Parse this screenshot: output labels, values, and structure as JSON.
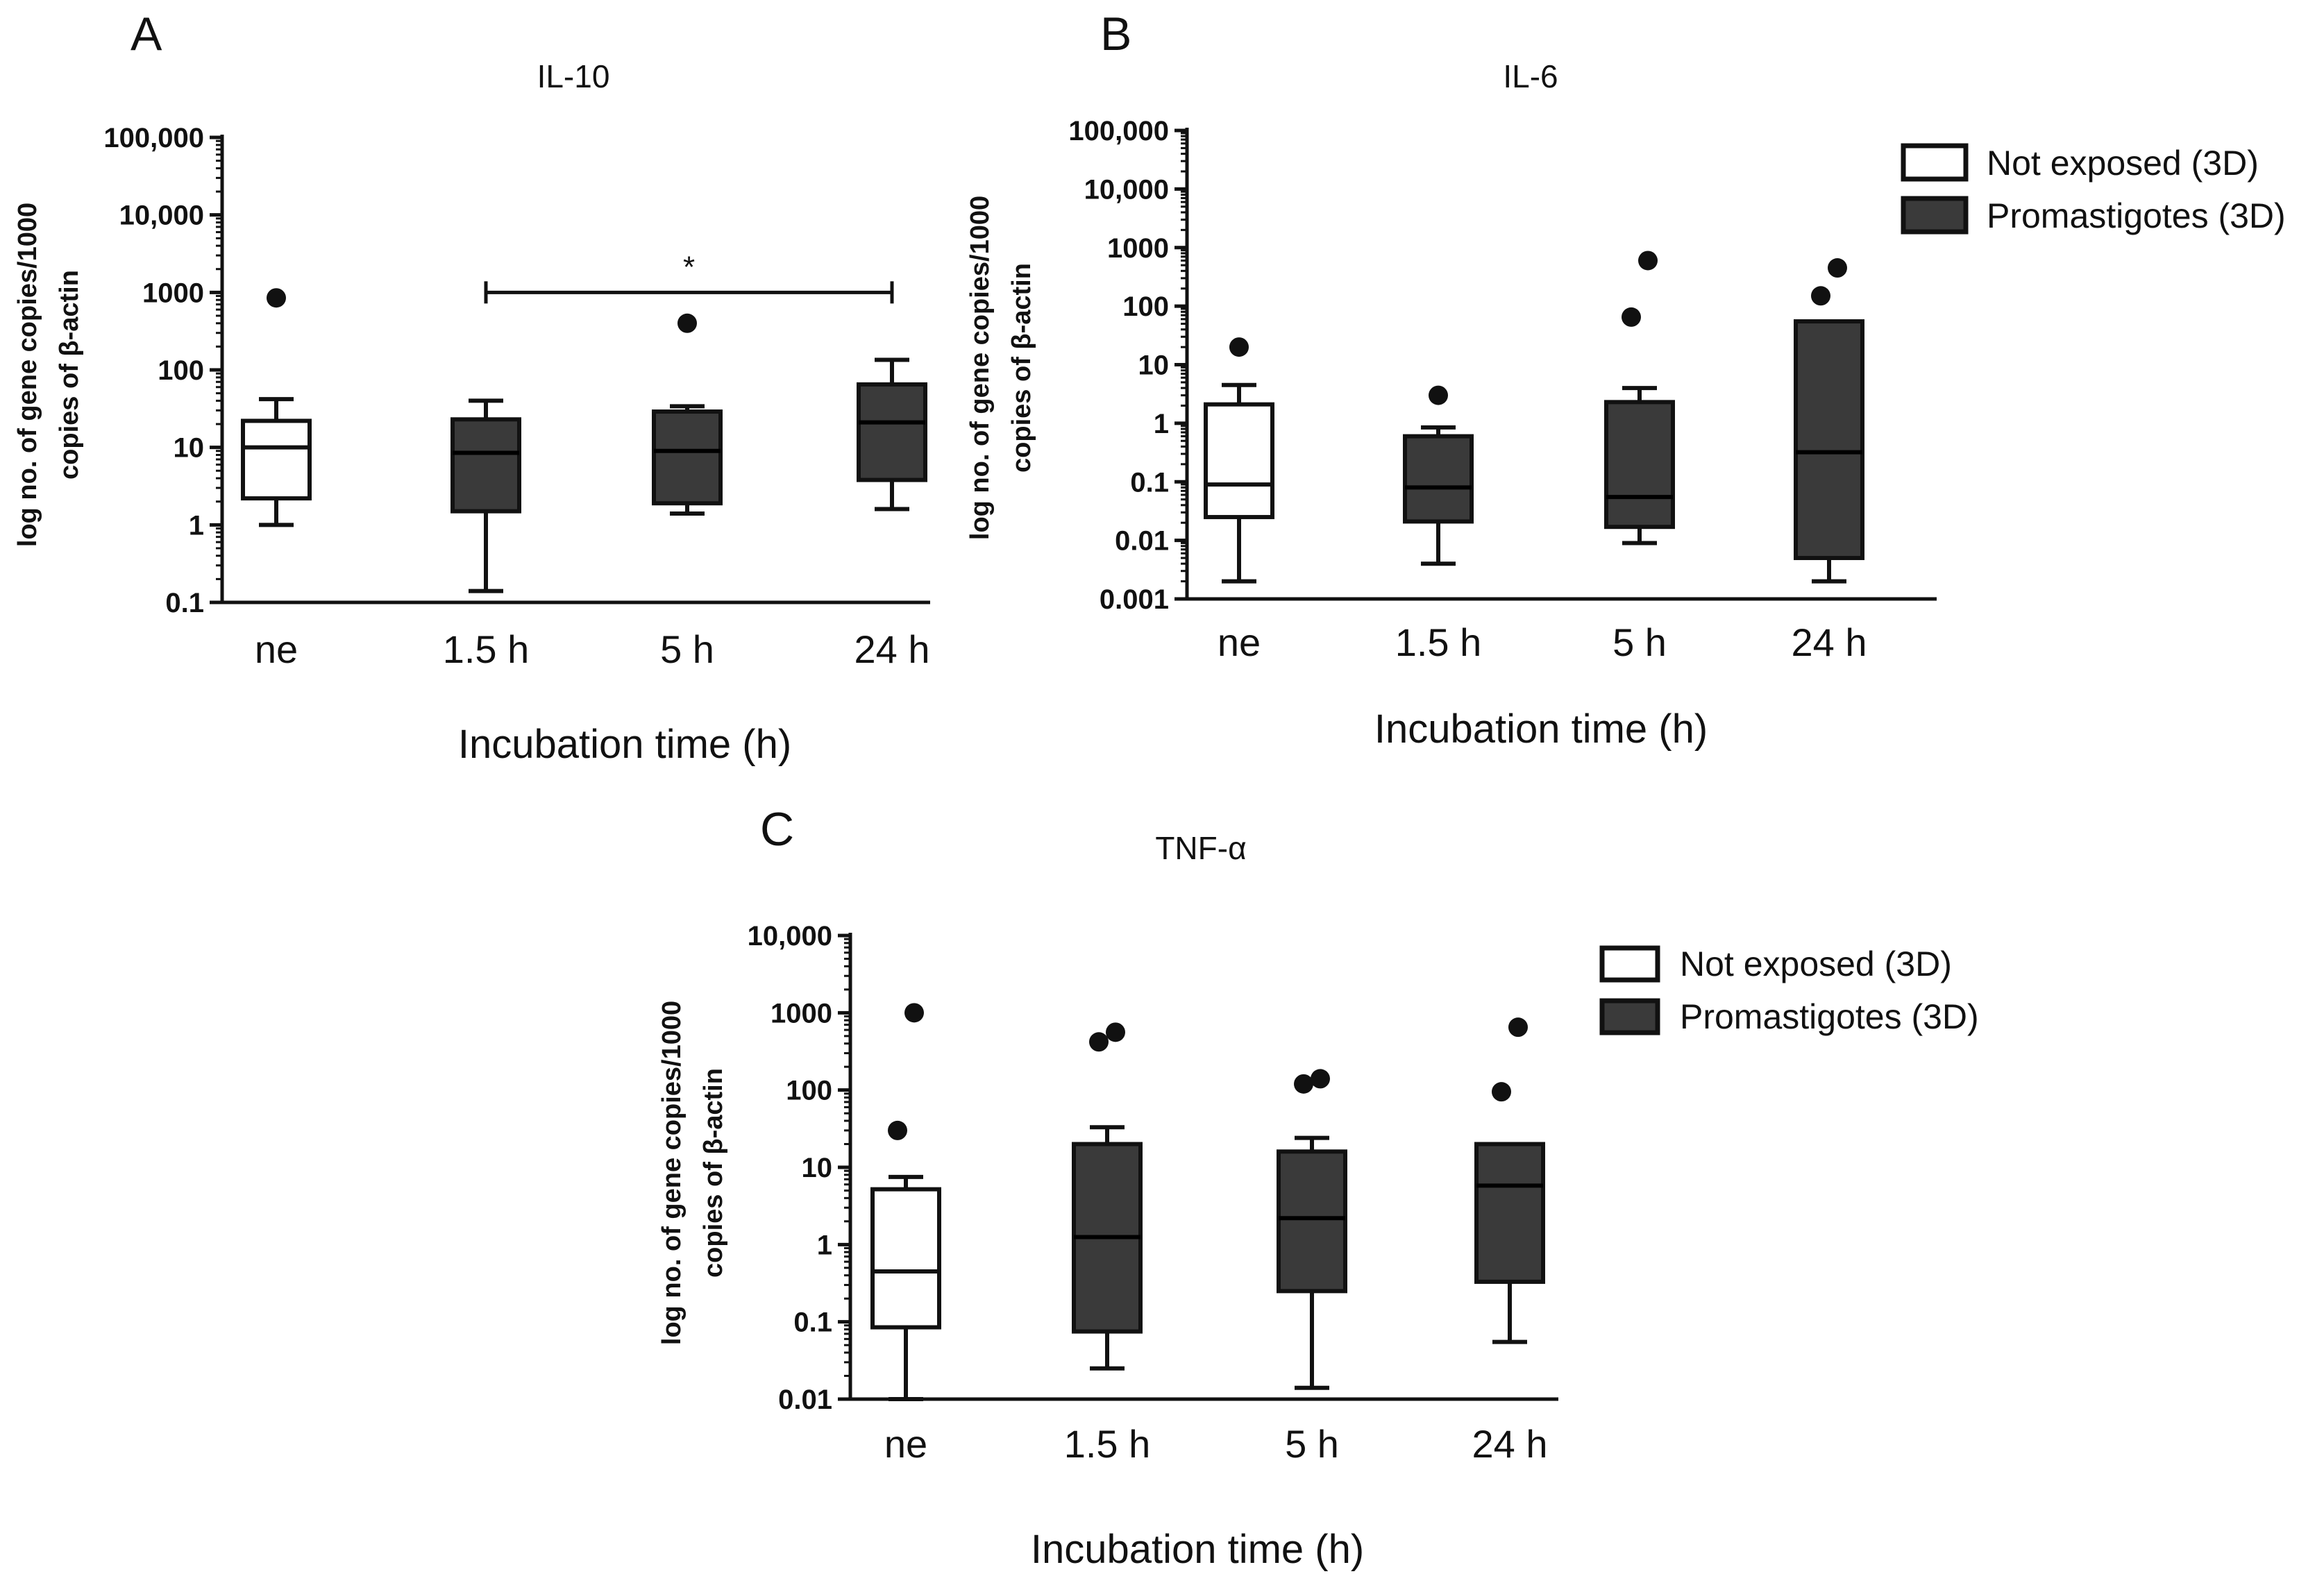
{
  "figure": {
    "colors": {
      "exposed_fill": "#3a3a3a",
      "not_exposed_fill": "#ffffff",
      "stroke": "#111111"
    }
  },
  "chart_data": [
    {
      "panel": "A",
      "type": "box",
      "title": "IL-10",
      "xlabel": "Incubation time (h)",
      "ylabel_line1": "log no. of gene copies/1000",
      "ylabel_line2": "copies of β-actin",
      "yscale": "log",
      "ylim": [
        0.1,
        100000
      ],
      "ytick_values": [
        0.1,
        1,
        10,
        100,
        1000,
        10000,
        100000
      ],
      "ytick_labels": [
        "0.1",
        "1",
        "10",
        "100",
        "1000",
        "10,000",
        "100,000"
      ],
      "categories": [
        "ne",
        "1.5 h",
        "5 h",
        "24 h"
      ],
      "boxes": [
        {
          "group": "ne",
          "series": "Not exposed (3D)",
          "whisker_low": 1.0,
          "q1": 2.2,
          "median": 10,
          "q3": 22,
          "whisker_high": 42,
          "outliers": [
            850
          ]
        },
        {
          "group": "1.5 h",
          "series": "Promastigotes (3D)",
          "whisker_low": 0.14,
          "q1": 1.5,
          "median": 8.5,
          "q3": 23,
          "whisker_high": 40,
          "outliers": []
        },
        {
          "group": "5 h",
          "series": "Promastigotes (3D)",
          "whisker_low": 1.4,
          "q1": 1.9,
          "median": 9,
          "q3": 29,
          "whisker_high": 34,
          "outliers": [
            400
          ]
        },
        {
          "group": "24 h",
          "series": "Promastigotes (3D)",
          "whisker_low": 1.6,
          "q1": 3.8,
          "median": 21,
          "q3": 65,
          "whisker_high": 135,
          "outliers": []
        }
      ],
      "significance": {
        "from": "1.5 h",
        "to": "24 h",
        "y": 1000,
        "label": "*"
      }
    },
    {
      "panel": "B",
      "type": "box",
      "title": "IL-6",
      "xlabel": "Incubation time (h)",
      "ylabel_line1": "log no. of gene copies/1000",
      "ylabel_line2": "copies of β-actin",
      "yscale": "log",
      "ylim": [
        0.001,
        100000
      ],
      "ytick_values": [
        0.001,
        0.01,
        0.1,
        1,
        10,
        100,
        1000,
        10000,
        100000
      ],
      "ytick_labels": [
        "0.001",
        "0.01",
        "0.1",
        "1",
        "10",
        "100",
        "1000",
        "10,000",
        "100,000"
      ],
      "categories": [
        "ne",
        "1.5 h",
        "5 h",
        "24 h"
      ],
      "boxes": [
        {
          "group": "ne",
          "series": "Not exposed (3D)",
          "whisker_low": 0.002,
          "q1": 0.025,
          "median": 0.09,
          "q3": 2.1,
          "whisker_high": 4.5,
          "outliers": [
            20
          ]
        },
        {
          "group": "1.5 h",
          "series": "Promastigotes (3D)",
          "whisker_low": 0.004,
          "q1": 0.021,
          "median": 0.08,
          "q3": 0.6,
          "whisker_high": 0.85,
          "outliers": [
            3
          ]
        },
        {
          "group": "5 h",
          "series": "Promastigotes (3D)",
          "whisker_low": 0.009,
          "q1": 0.017,
          "median": 0.055,
          "q3": 2.3,
          "whisker_high": 4.0,
          "outliers": [
            65,
            600
          ]
        },
        {
          "group": "24 h",
          "series": "Promastigotes (3D)",
          "whisker_low": 0.002,
          "q1": 0.005,
          "median": 0.32,
          "q3": 55,
          "whisker_high": 55,
          "outliers": [
            150,
            450
          ]
        }
      ],
      "legend": [
        "Not exposed (3D)",
        "Promastigotes (3D)"
      ]
    },
    {
      "panel": "C",
      "type": "box",
      "title": "TNF-α",
      "xlabel": "Incubation time (h)",
      "ylabel_line1": "log no. of gene copies/1000",
      "ylabel_line2": "copies of β-actin",
      "yscale": "log",
      "ylim": [
        0.01,
        10000
      ],
      "ytick_values": [
        0.01,
        0.1,
        1,
        10,
        100,
        1000,
        10000
      ],
      "ytick_labels": [
        "0.01",
        "0.1",
        "1",
        "10",
        "100",
        "1000",
        "10,000"
      ],
      "categories": [
        "ne",
        "1.5 h",
        "5 h",
        "24 h"
      ],
      "boxes": [
        {
          "group": "ne",
          "series": "Not exposed (3D)",
          "whisker_low": 0.01,
          "q1": 0.085,
          "median": 0.45,
          "q3": 5.2,
          "whisker_high": 7.5,
          "outliers": [
            30,
            1000
          ]
        },
        {
          "group": "1.5 h",
          "series": "Promastigotes (3D)",
          "whisker_low": 0.025,
          "q1": 0.075,
          "median": 1.25,
          "q3": 20,
          "whisker_high": 33,
          "outliers": [
            420,
            560
          ]
        },
        {
          "group": "5 h",
          "series": "Promastigotes (3D)",
          "whisker_low": 0.014,
          "q1": 0.25,
          "median": 2.2,
          "q3": 16,
          "whisker_high": 24,
          "outliers": [
            120,
            140
          ]
        },
        {
          "group": "24 h",
          "series": "Promastigotes (3D)",
          "whisker_low": 0.055,
          "q1": 0.33,
          "median": 5.8,
          "q3": 20,
          "whisker_high": 20,
          "outliers": [
            95,
            650
          ]
        }
      ],
      "legend": [
        "Not exposed  (3D)",
        "Promastigotes (3D)"
      ]
    }
  ]
}
